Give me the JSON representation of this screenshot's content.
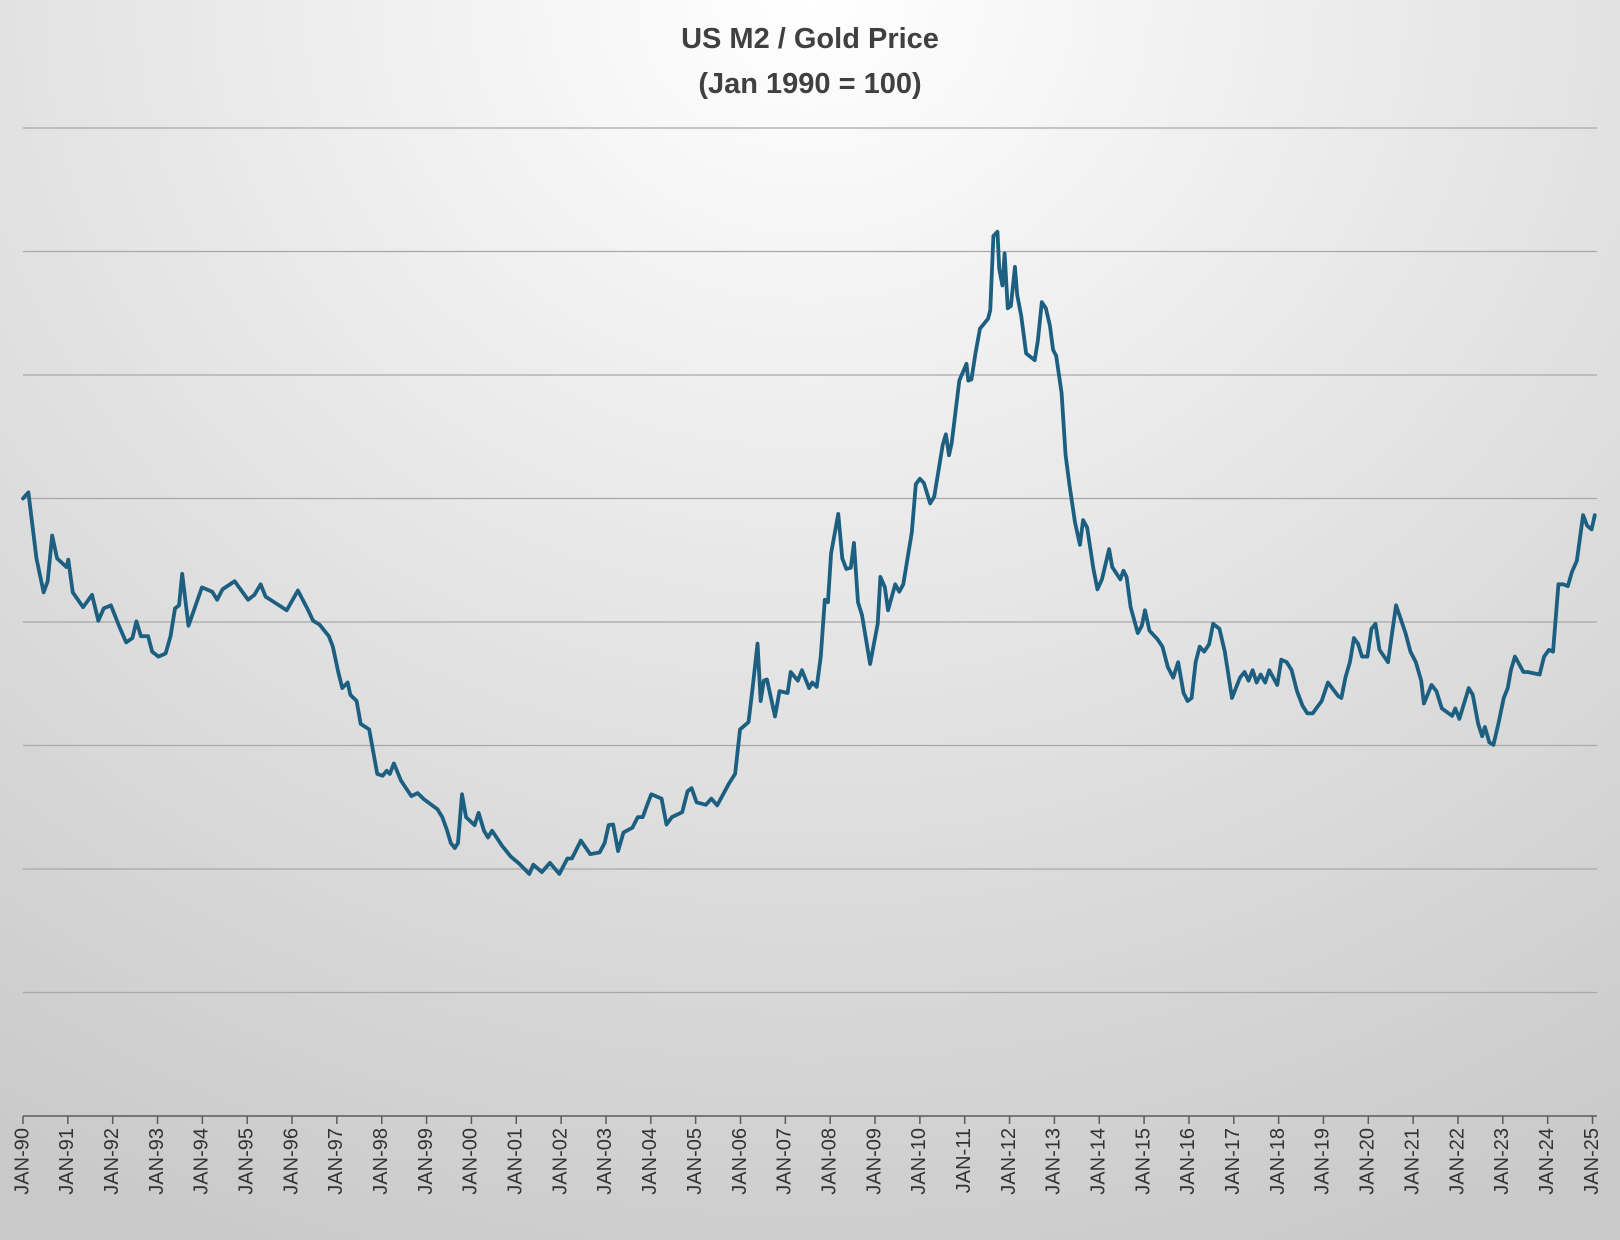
{
  "chart_data": {
    "type": "line",
    "title": "US M2 / Gold Price",
    "subtitle": "(Jan 1990 = 100)",
    "color": "#1c5f80",
    "grid": true,
    "ytick_labels": false,
    "xlim": [
      1990,
      2025.1
    ],
    "ylim": [
      0,
      160
    ],
    "yticks": [
      0,
      20,
      40,
      60,
      80,
      100,
      120,
      140,
      160
    ],
    "xticks": [
      {
        "value": 1990,
        "label": "JAN-90"
      },
      {
        "value": 1991,
        "label": "JAN-91"
      },
      {
        "value": 1992,
        "label": "JAN-92"
      },
      {
        "value": 1993,
        "label": "JAN-93"
      },
      {
        "value": 1994,
        "label": "JAN-94"
      },
      {
        "value": 1995,
        "label": "JAN-95"
      },
      {
        "value": 1996,
        "label": "JAN-96"
      },
      {
        "value": 1997,
        "label": "JAN-97"
      },
      {
        "value": 1998,
        "label": "JAN-98"
      },
      {
        "value": 1999,
        "label": "JAN-99"
      },
      {
        "value": 2000,
        "label": "JAN-00"
      },
      {
        "value": 2001,
        "label": "JAN-01"
      },
      {
        "value": 2002,
        "label": "JAN-02"
      },
      {
        "value": 2003,
        "label": "JAN-03"
      },
      {
        "value": 2004,
        "label": "JAN-04"
      },
      {
        "value": 2005,
        "label": "JAN-05"
      },
      {
        "value": 2006,
        "label": "JAN-06"
      },
      {
        "value": 2007,
        "label": "JAN-07"
      },
      {
        "value": 2008,
        "label": "JAN-08"
      },
      {
        "value": 2009,
        "label": "JAN-09"
      },
      {
        "value": 2010,
        "label": "JAN-10"
      },
      {
        "value": 2011,
        "label": "JAN-11"
      },
      {
        "value": 2012,
        "label": "JAN-12"
      },
      {
        "value": 2013,
        "label": "JAN-13"
      },
      {
        "value": 2014,
        "label": "JAN-14"
      },
      {
        "value": 2015,
        "label": "JAN-15"
      },
      {
        "value": 2016,
        "label": "JAN-16"
      },
      {
        "value": 2017,
        "label": "JAN-17"
      },
      {
        "value": 2018,
        "label": "JAN-18"
      },
      {
        "value": 2019,
        "label": "JAN-19"
      },
      {
        "value": 2020,
        "label": "JAN-20"
      },
      {
        "value": 2021,
        "label": "JAN-21"
      },
      {
        "value": 2022,
        "label": "JAN-22"
      },
      {
        "value": 2023,
        "label": "JAN-23"
      },
      {
        "value": 2024,
        "label": "JAN-24"
      },
      {
        "value": 2025,
        "label": "JAN-25"
      }
    ],
    "x": [
      1990.0,
      1990.12,
      1990.3,
      1990.46,
      1990.55,
      1990.65,
      1990.76,
      1990.97,
      1991.01,
      1991.11,
      1991.34,
      1991.54,
      1991.68,
      1991.8,
      1991.96,
      1992.14,
      1992.3,
      1992.44,
      1992.53,
      1992.63,
      1992.79,
      1992.88,
      1993.02,
      1993.18,
      1993.29,
      1993.39,
      1993.48,
      1993.55,
      1993.69,
      1993.99,
      1994.22,
      1994.33,
      1994.45,
      1994.72,
      1995.02,
      1995.16,
      1995.3,
      1995.41,
      1995.71,
      1995.88,
      1996.13,
      1996.36,
      1996.47,
      1996.61,
      1996.82,
      1996.91,
      1997.03,
      1997.12,
      1997.24,
      1997.3,
      1997.44,
      1997.53,
      1997.72,
      1997.9,
      1998.02,
      1998.11,
      1998.18,
      1998.27,
      1998.43,
      1998.66,
      1998.8,
      1998.94,
      1999.24,
      1999.35,
      1999.45,
      1999.54,
      1999.63,
      1999.7,
      1999.79,
      1999.88,
      2000.07,
      2000.16,
      2000.28,
      2000.37,
      2000.46,
      2000.69,
      2000.88,
      2001.06,
      2001.29,
      2001.38,
      2001.57,
      2001.75,
      2001.96,
      2002.14,
      2002.24,
      2002.44,
      2002.65,
      2002.86,
      2002.97,
      2003.06,
      2003.16,
      2003.27,
      2003.39,
      2003.59,
      2003.71,
      2003.82,
      2003.92,
      2004.01,
      2004.24,
      2004.35,
      2004.47,
      2004.7,
      2004.82,
      2004.91,
      2005.02,
      2005.23,
      2005.35,
      2005.48,
      2005.74,
      2005.88,
      2005.99,
      2006.18,
      2006.27,
      2006.38,
      2006.45,
      2006.52,
      2006.59,
      2006.77,
      2006.87,
      2007.05,
      2007.12,
      2007.28,
      2007.37,
      2007.53,
      2007.6,
      2007.7,
      2007.79,
      2007.88,
      2007.95,
      2008.02,
      2008.18,
      2008.27,
      2008.36,
      2008.46,
      2008.53,
      2008.62,
      2008.71,
      2008.89,
      2009.06,
      2009.12,
      2009.22,
      2009.29,
      2009.45,
      2009.54,
      2009.63,
      2009.82,
      2009.91,
      2010.0,
      2010.09,
      2010.23,
      2010.32,
      2010.51,
      2010.58,
      2010.65,
      2010.71,
      2010.88,
      2011.04,
      2011.08,
      2011.15,
      2011.24,
      2011.34,
      2011.52,
      2011.57,
      2011.64,
      2011.73,
      2011.77,
      2011.84,
      2011.89,
      2011.96,
      2012.03,
      2012.12,
      2012.17,
      2012.26,
      2012.37,
      2012.56,
      2012.63,
      2012.72,
      2012.81,
      2012.9,
      2012.97,
      2013.04,
      2013.16,
      2013.25,
      2013.34,
      2013.46,
      2013.57,
      2013.64,
      2013.73,
      2013.87,
      2013.96,
      2014.06,
      2014.22,
      2014.29,
      2014.47,
      2014.54,
      2014.61,
      2014.7,
      2014.86,
      2014.95,
      2015.02,
      2015.12,
      2015.3,
      2015.41,
      2015.53,
      2015.65,
      2015.76,
      2015.88,
      2015.97,
      2016.06,
      2016.15,
      2016.24,
      2016.34,
      2016.45,
      2016.54,
      2016.68,
      2016.8,
      2016.96,
      2017.14,
      2017.24,
      2017.33,
      2017.42,
      2017.51,
      2017.6,
      2017.7,
      2017.79,
      2017.97,
      2018.06,
      2018.18,
      2018.29,
      2018.41,
      2018.53,
      2018.64,
      2018.76,
      2018.96,
      2019.1,
      2019.33,
      2019.4,
      2019.49,
      2019.59,
      2019.68,
      2019.77,
      2019.86,
      2019.98,
      2020.07,
      2020.16,
      2020.25,
      2020.44,
      2020.53,
      2020.62,
      2020.83,
      2020.94,
      2021.06,
      2021.18,
      2021.24,
      2021.41,
      2021.52,
      2021.64,
      2021.87,
      2021.94,
      2022.03,
      2022.24,
      2022.33,
      2022.45,
      2022.54,
      2022.6,
      2022.7,
      2022.79,
      2022.9,
      2023.02,
      2023.11,
      2023.18,
      2023.27,
      2023.46,
      2023.55,
      2023.82,
      2023.92,
      2024.03,
      2024.12,
      2024.24,
      2024.35,
      2024.45,
      2024.54,
      2024.65,
      2024.79,
      2024.88,
      2024.98,
      2025.05
    ],
    "values": [
      100.0,
      101.0,
      90.3,
      84.8,
      86.6,
      94.0,
      90.3,
      88.9,
      90.1,
      84.8,
      82.4,
      84.4,
      80.2,
      82.2,
      82.7,
      79.4,
      76.7,
      77.4,
      80.1,
      77.7,
      77.7,
      75.2,
      74.4,
      74.9,
      77.7,
      82.2,
      82.7,
      87.8,
      79.4,
      85.6,
      84.9,
      83.6,
      85.3,
      86.6,
      83.6,
      84.4,
      86.1,
      84.1,
      82.7,
      81.9,
      85.1,
      81.9,
      80.2,
      79.6,
      77.7,
      76.0,
      71.9,
      69.3,
      70.2,
      68.2,
      67.2,
      63.5,
      62.6,
      55.4,
      55.1,
      55.9,
      55.4,
      57.1,
      54.3,
      51.8,
      52.3,
      51.3,
      49.7,
      48.4,
      46.4,
      44.2,
      43.4,
      44.2,
      52.1,
      48.4,
      47.1,
      49.1,
      46.2,
      45.1,
      46.2,
      43.7,
      42.0,
      40.9,
      39.2,
      40.7,
      39.5,
      41.0,
      39.2,
      41.7,
      41.7,
      44.6,
      42.4,
      42.7,
      44.2,
      47.1,
      47.2,
      42.9,
      45.9,
      46.7,
      48.4,
      48.4,
      50.4,
      52.1,
      51.4,
      47.2,
      48.4,
      49.2,
      52.6,
      53.1,
      50.8,
      50.4,
      51.4,
      50.3,
      53.8,
      55.4,
      62.6,
      63.8,
      69.3,
      76.5,
      67.2,
      70.5,
      70.7,
      64.7,
      68.8,
      68.5,
      71.9,
      70.5,
      72.2,
      69.3,
      70.2,
      69.5,
      74.4,
      83.6,
      83.2,
      91.1,
      97.5,
      90.3,
      88.6,
      88.8,
      92.8,
      83.2,
      81.1,
      73.2,
      79.7,
      87.3,
      85.6,
      81.9,
      86.1,
      84.9,
      86.1,
      94.5,
      102.3,
      103.2,
      102.5,
      99.2,
      100.3,
      108.7,
      110.4,
      107.0,
      109.0,
      119.1,
      121.8,
      119.1,
      119.3,
      123.5,
      127.5,
      129.1,
      130.5,
      142.5,
      143.2,
      137.2,
      134.5,
      139.7,
      130.8,
      131.2,
      137.5,
      133.0,
      129.6,
      123.5,
      122.4,
      125.5,
      131.8,
      130.8,
      128.0,
      124.1,
      123.1,
      117.1,
      107.0,
      102.0,
      96.1,
      92.5,
      96.5,
      95.3,
      88.6,
      85.3,
      86.9,
      91.8,
      88.9,
      86.9,
      88.3,
      87.3,
      82.4,
      78.2,
      79.4,
      81.9,
      78.6,
      77.2,
      76.0,
      72.7,
      71.0,
      73.5,
      68.5,
      67.2,
      67.7,
      73.5,
      76.0,
      75.2,
      76.4,
      79.7,
      78.9,
      75.2,
      67.7,
      71.0,
      71.9,
      70.5,
      72.2,
      70.2,
      71.5,
      70.2,
      72.2,
      69.8,
      73.9,
      73.5,
      72.2,
      68.8,
      66.5,
      65.2,
      65.2,
      67.2,
      70.2,
      68.0,
      67.7,
      71.0,
      73.5,
      77.4,
      76.5,
      74.4,
      74.4,
      78.9,
      79.7,
      75.5,
      73.5,
      78.2,
      82.7,
      78.2,
      75.2,
      73.5,
      70.5,
      66.8,
      69.8,
      68.8,
      66.0,
      64.8,
      66.0,
      64.3,
      69.3,
      68.2,
      63.5,
      61.5,
      63.0,
      60.5,
      60.1,
      63.5,
      67.7,
      69.3,
      72.2,
      74.4,
      71.9,
      71.9,
      71.5,
      74.4,
      75.5,
      75.2,
      86.1,
      86.1,
      85.8,
      88.1,
      89.9,
      97.3,
      95.6,
      95.0,
      97.3
    ]
  }
}
